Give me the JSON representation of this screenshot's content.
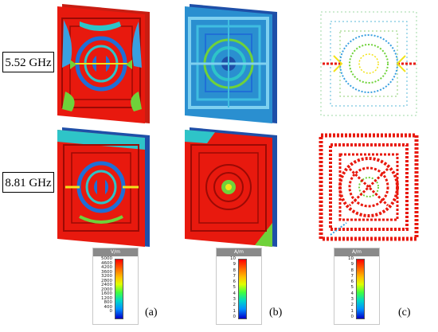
{
  "row_labels": [
    "5.52 GHz",
    "8.81 GHz"
  ],
  "legends": [
    {
      "unit": "V/m",
      "ticks": [
        "5000",
        "4600",
        "4200",
        "3600",
        "3200",
        "2800",
        "2400",
        "2000",
        "1600",
        "1200",
        "800",
        "400",
        "0"
      ]
    },
    {
      "unit": "A/m",
      "ticks": [
        "10",
        "9",
        "8",
        "7",
        "6",
        "5",
        "4",
        "3",
        "2",
        "1",
        "0"
      ]
    },
    {
      "unit": "A/m",
      "ticks": [
        "10",
        "9",
        "8",
        "7",
        "6",
        "5",
        "4",
        "3",
        "2",
        "1",
        "0"
      ]
    }
  ],
  "sub_labels": [
    "(a)",
    "(b)",
    "(c)"
  ],
  "colors": {
    "hot": "#e8190e",
    "cool": "#1f6fd6",
    "cyan": "#2ec4c8",
    "green": "#6fd23a",
    "yellow": "#f2e31a",
    "dark_blue": "#2244b0"
  }
}
